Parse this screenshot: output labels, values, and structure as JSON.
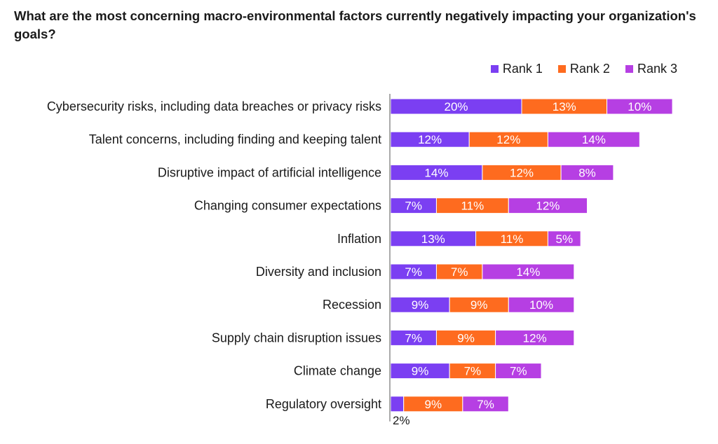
{
  "chart_data": {
    "type": "bar",
    "orientation": "horizontal",
    "stacked": true,
    "title": "What are the most concerning macro-environmental factors currently negatively impacting your organization's goals?",
    "categories": [
      "Cybersecurity risks, including data breaches or privacy risks",
      "Talent concerns, including finding and keeping talent",
      "Disruptive impact of artificial intelligence",
      "Changing consumer expectations",
      "Inflation",
      "Diversity and inclusion",
      "Recession",
      "Supply chain disruption issues",
      "Climate change",
      "Regulatory oversight"
    ],
    "series": [
      {
        "name": "Rank 1",
        "color": "#7b3ff2",
        "values": [
          20,
          12,
          14,
          7,
          13,
          7,
          9,
          7,
          9,
          2
        ]
      },
      {
        "name": "Rank 2",
        "color": "#fe6b1f",
        "values": [
          13,
          12,
          12,
          11,
          11,
          7,
          9,
          9,
          7,
          9
        ]
      },
      {
        "name": "Rank 3",
        "color": "#b63fe3",
        "values": [
          10,
          14,
          8,
          12,
          5,
          14,
          10,
          12,
          7,
          7
        ]
      }
    ],
    "legend_position": "top-right",
    "grid": false,
    "data_label_suffix": "%"
  }
}
